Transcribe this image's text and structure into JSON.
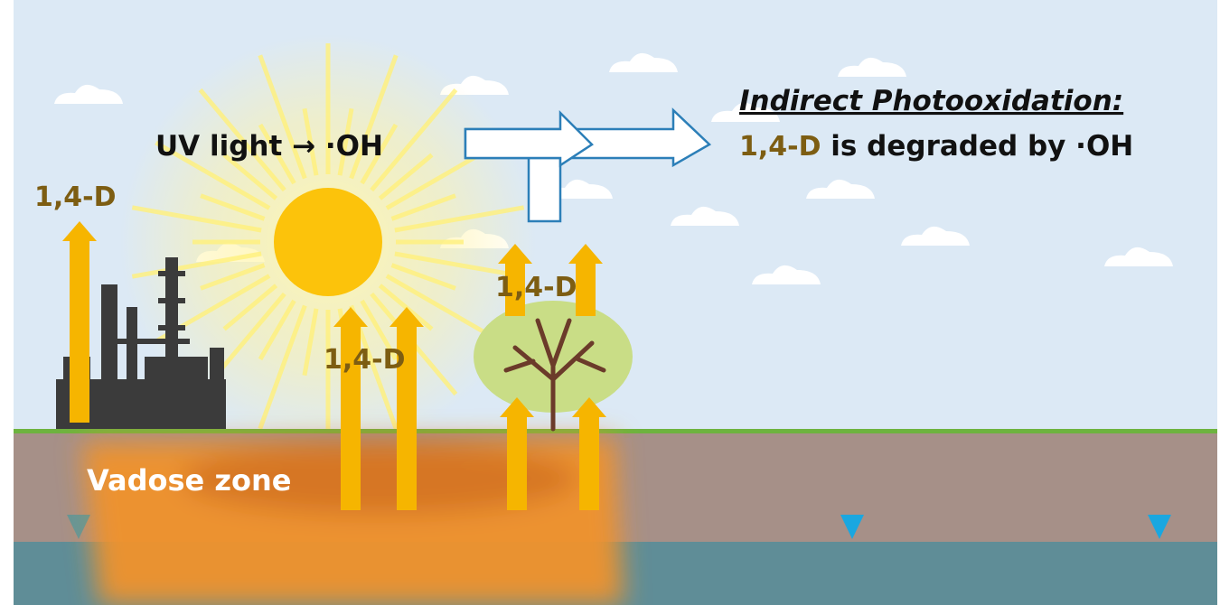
{
  "title": "Indirect Photooxidation:",
  "description": {
    "compound": "1,4-D",
    "text": " is degraded by ·OH"
  },
  "process": "UV light → ·OH",
  "emission_labels": [
    "1,4-D",
    "1,4-D",
    "1,4-D"
  ],
  "zone": "Vadose zone"
}
